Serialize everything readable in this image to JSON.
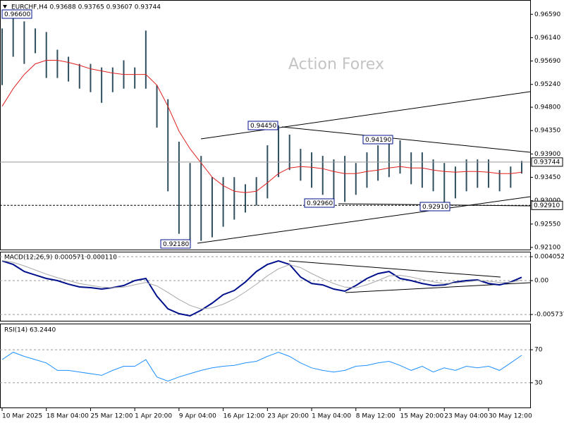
{
  "chart_data": [
    {
      "type": "hilo",
      "title": "EURCHF,H4 0.93688 0.93765 0.93607 0.93744",
      "watermark": "Action Forex",
      "xlim": [
        0,
        47
      ],
      "xticks": [
        {
          "value": 0,
          "label": "10 Mar 2025"
        },
        {
          "value": 4,
          "label": "18 Mar 04:00"
        },
        {
          "value": 8,
          "label": "25 Mar 12:00"
        },
        {
          "value": 12,
          "label": "1 Apr 20:00"
        },
        {
          "value": 16,
          "label": "9 Apr 04:00"
        },
        {
          "value": 20,
          "label": "16 Apr 12:00"
        },
        {
          "value": 24,
          "label": "23 Apr 20:00"
        },
        {
          "value": 28,
          "label": "1 May 04:00"
        },
        {
          "value": 32,
          "label": "8 May 12:00"
        },
        {
          "value": 36,
          "label": "15 May 20:00"
        },
        {
          "value": 40,
          "label": "23 May 04:00"
        },
        {
          "value": 44,
          "label": "30 May 12:00"
        }
      ],
      "ylim": [
        0.92045,
        0.96838
      ],
      "yticks": [
        {
          "value": 0.9659,
          "label": "0.96590"
        },
        {
          "value": 0.9614,
          "label": "0.96140"
        },
        {
          "value": 0.9569,
          "label": "0.95690"
        },
        {
          "value": 0.9524,
          "label": "0.95240"
        },
        {
          "value": 0.948,
          "label": "0.94800"
        },
        {
          "value": 0.9435,
          "label": "0.94350"
        },
        {
          "value": 0.939,
          "label": "0.93900"
        },
        {
          "value": 0.9345,
          "label": "0.93450"
        },
        {
          "value": 0.93,
          "label": "0.93000"
        },
        {
          "value": 0.9255,
          "label": "0.92550"
        },
        {
          "value": 0.921,
          "label": "0.92100"
        }
      ],
      "bars": {
        "color": "#2f4f5f",
        "high": [
          0.96317,
          0.966,
          0.96454,
          0.96317,
          0.96249,
          0.95908,
          0.95772,
          0.95635,
          0.95635,
          0.95567,
          0.95567,
          0.95704,
          0.95567,
          0.96276,
          0.95226,
          0.94954,
          0.94136,
          0.93726,
          0.93863,
          0.93454,
          0.93454,
          0.93454,
          0.93317,
          0.93454,
          0.94067,
          0.9445,
          0.94272,
          0.93999,
          0.93931,
          0.93863,
          0.93795,
          0.93863,
          0.93726,
          0.93931,
          0.94067,
          0.9419,
          0.94163,
          0.93931,
          0.93931,
          0.93795,
          0.93726,
          0.93658,
          0.93795,
          0.93795,
          0.93795,
          0.9359,
          0.93658,
          0.93765
        ],
        "low": [
          0.95226,
          0.95772,
          0.95635,
          0.9584,
          0.95363,
          0.95363,
          0.95295,
          0.95158,
          0.9509,
          0.94885,
          0.9509,
          0.95158,
          0.95158,
          0.95158,
          0.94408,
          0.93181,
          0.92363,
          0.9218,
          0.92226,
          0.92295,
          0.92499,
          0.92635,
          0.92772,
          0.92908,
          0.93045,
          0.93454,
          0.9359,
          0.93385,
          0.93249,
          0.93113,
          0.9296,
          0.92976,
          0.93113,
          0.93249,
          0.93385,
          0.93454,
          0.93522,
          0.93317,
          0.93249,
          0.93181,
          0.9291,
          0.93045,
          0.93181,
          0.93249,
          0.93249,
          0.93181,
          0.93249,
          0.93522
        ]
      },
      "lines": [
        {
          "color": "#e02020",
          "values": [
            0.94817,
            0.95158,
            0.95431,
            0.95635,
            0.95704,
            0.95704,
            0.95663,
            0.95608,
            0.9554,
            0.95499,
            0.95458,
            0.95431,
            0.95431,
            0.95431,
            0.95226,
            0.94817,
            0.9434,
            0.93999,
            0.93726,
            0.93454,
            0.9329,
            0.93181,
            0.93154,
            0.93181,
            0.93345,
            0.93522,
            0.93631,
            0.93658,
            0.93645,
            0.93617,
            0.93563,
            0.93522,
            0.93522,
            0.93563,
            0.9359,
            0.93631,
            0.93658,
            0.93631,
            0.93631,
            0.9359,
            0.93563,
            0.93549,
            0.93563,
            0.93563,
            0.93549,
            0.93522,
            0.93522,
            0.93549
          ]
        }
      ],
      "levels": [
        0.93744,
        {
          "value": 0.9291,
          "label": "0.92910"
        }
      ],
      "annotations": [
        "0.96600",
        "0.92180",
        "0.94450",
        "0.94190",
        "0.92960",
        "0.92910"
      ]
    },
    {
      "type": "line",
      "title": "MACD(12,26,9) 0.000571 0.000110",
      "ylim": [
        -0.0068,
        0.0049
      ],
      "yticks": [
        0.004052,
        {
          "value": 0,
          "label": "0.00"
        },
        -0.005737
      ],
      "lines": [
        {
          "color": "#00108b",
          "values": [
            0.00334,
            0.00274,
            0.00155,
            0.00095,
            0.00036,
            0,
            -0.0006,
            -0.00107,
            -0.00119,
            -0.00143,
            -0.00119,
            -0.00083,
            0,
            0.00036,
            -0.00262,
            -0.00477,
            -0.0056,
            -0.00596,
            -0.00501,
            -0.00381,
            -0.00238,
            -0.00167,
            -0.00024,
            0.00155,
            0.00274,
            0.00334,
            0.00274,
            0.0006,
            -0.00048,
            -0.00072,
            -0.00143,
            -0.00179,
            -0.00083,
            0.00036,
            0.00119,
            0.00155,
            0.00036,
            0,
            -0.00048,
            -0.00083,
            -0.00072,
            -0.00024,
            0,
            0.00012,
            -0.00048,
            -0.00072,
            -0.00024,
            0.00057
          ]
        },
        {
          "color": "#a8a8a8",
          "values": [
            0.0034,
            0.0031,
            0.0025,
            0.0018,
            0.0011,
            0.0005,
            0,
            -0.0005,
            -0.0008,
            -0.0011,
            -0.0012,
            -0.0011,
            -0.0007,
            -0.0003,
            -0.0009,
            -0.002,
            -0.0032,
            -0.0042,
            -0.0048,
            -0.0046,
            -0.004,
            -0.0031,
            -0.0019,
            -0.0006,
            0.0008,
            0.002,
            0.0027,
            0.0022,
            0.0012,
            0.0003,
            -0.0005,
            -0.0011,
            -0.0012,
            -0.0007,
            0,
            0.0008,
            0.0009,
            0.0006,
            0.0002,
            -0.0002,
            -0.0005,
            -0.0004,
            -0.0002,
            0,
            -0.0001,
            -0.0003,
            -0.0003,
            0.0001
          ]
        }
      ]
    },
    {
      "type": "line",
      "title": "RSI(14) 63.2440",
      "ylim": [
        0,
        100
      ],
      "yticks": [
        70,
        30
      ],
      "lines": [
        {
          "color": "#1e90ff",
          "values": [
            58,
            67,
            62,
            58,
            54,
            45,
            45,
            43,
            41,
            39,
            45,
            50,
            50,
            58,
            37,
            32,
            37,
            41,
            45,
            48,
            50,
            51,
            54,
            56,
            62,
            67,
            62,
            54,
            48,
            45,
            43,
            45,
            50,
            51,
            54,
            56,
            51,
            45,
            50,
            43,
            48,
            45,
            50,
            48,
            50,
            45,
            54,
            63.244
          ]
        }
      ]
    }
  ]
}
